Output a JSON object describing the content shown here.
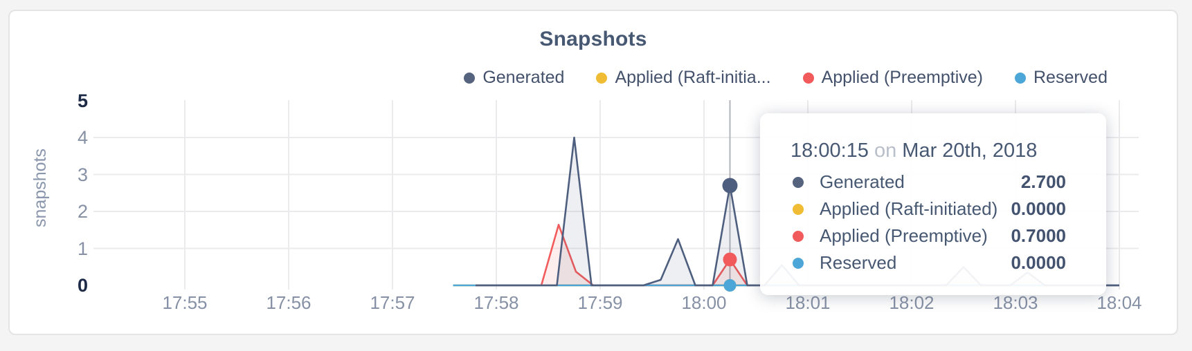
{
  "chart": {
    "title": "Snapshots",
    "ylabel": "snapshots"
  },
  "legend": {
    "items": [
      {
        "label": "Generated",
        "color": "#55637f"
      },
      {
        "label": "Applied (Raft-initia...",
        "color": "#efbc33"
      },
      {
        "label": "Applied (Preemptive)",
        "color": "#f25b5b"
      },
      {
        "label": "Reserved",
        "color": "#4da6d8"
      }
    ]
  },
  "tooltip": {
    "time": "18:00:15",
    "conjunction": "on",
    "date": "Mar 20th, 2018",
    "rows": [
      {
        "label": "Generated",
        "value": "2.700",
        "color": "#55637f"
      },
      {
        "label": "Applied (Raft-initiated)",
        "value": "0.0000",
        "color": "#efbc33"
      },
      {
        "label": "Applied (Preemptive)",
        "value": "0.7000",
        "color": "#f25b5b"
      },
      {
        "label": "Reserved",
        "value": "0.0000",
        "color": "#4da6d8"
      }
    ]
  },
  "chart_data": {
    "type": "area",
    "title": "Snapshots",
    "xlabel": "",
    "ylabel": "snapshots",
    "ylim": [
      0,
      5
    ],
    "y_ticks": [
      0,
      1,
      2,
      3,
      4,
      5
    ],
    "x_ticks": [
      "17:55",
      "17:56",
      "17:57",
      "17:58",
      "17:59",
      "18:00",
      "18:01",
      "18:02",
      "18:03",
      "18:04"
    ],
    "x_unit": "seconds after 17:55:00",
    "grid": true,
    "legend_position": "top-right",
    "series": [
      {
        "name": "Generated",
        "color": "#4e5e7e",
        "fill": "rgba(78,94,126,0.10)",
        "points": [
          [
            168,
            0
          ],
          [
            215,
            0
          ],
          [
            225,
            4
          ],
          [
            235,
            0
          ],
          [
            265,
            0
          ],
          [
            275,
            0.15
          ],
          [
            285,
            1.25
          ],
          [
            295,
            0
          ],
          [
            305,
            0
          ],
          [
            315,
            2.7
          ],
          [
            325,
            0
          ],
          [
            335,
            0
          ],
          [
            345,
            0.55
          ],
          [
            355,
            0
          ],
          [
            440,
            0
          ],
          [
            450,
            0.5
          ],
          [
            460,
            0
          ],
          [
            477,
            0
          ],
          [
            487,
            0.35
          ],
          [
            497,
            0
          ],
          [
            540,
            0
          ]
        ]
      },
      {
        "name": "Applied (Raft-initiated)",
        "color": "#efbc33",
        "fill": null,
        "points": [
          [
            155,
            0
          ],
          [
            540,
            0
          ]
        ]
      },
      {
        "name": "Applied (Preemptive)",
        "color": "#f25b5b",
        "fill": "rgba(242,91,91,0.10)",
        "points": [
          [
            168,
            0
          ],
          [
            206,
            0
          ],
          [
            216,
            1.64
          ],
          [
            226,
            0.37
          ],
          [
            236,
            0
          ],
          [
            305,
            0
          ],
          [
            315,
            0.7
          ],
          [
            325,
            0
          ],
          [
            540,
            0
          ]
        ]
      },
      {
        "name": "Reserved",
        "color": "#4da6d8",
        "fill": null,
        "points": [
          [
            155,
            0
          ],
          [
            540,
            0
          ]
        ]
      }
    ],
    "hover": {
      "time": "18:00:15",
      "date": "Mar 20th, 2018",
      "t_seconds": 315,
      "values": [
        2.7,
        0.0,
        0.7,
        0.0
      ]
    }
  }
}
